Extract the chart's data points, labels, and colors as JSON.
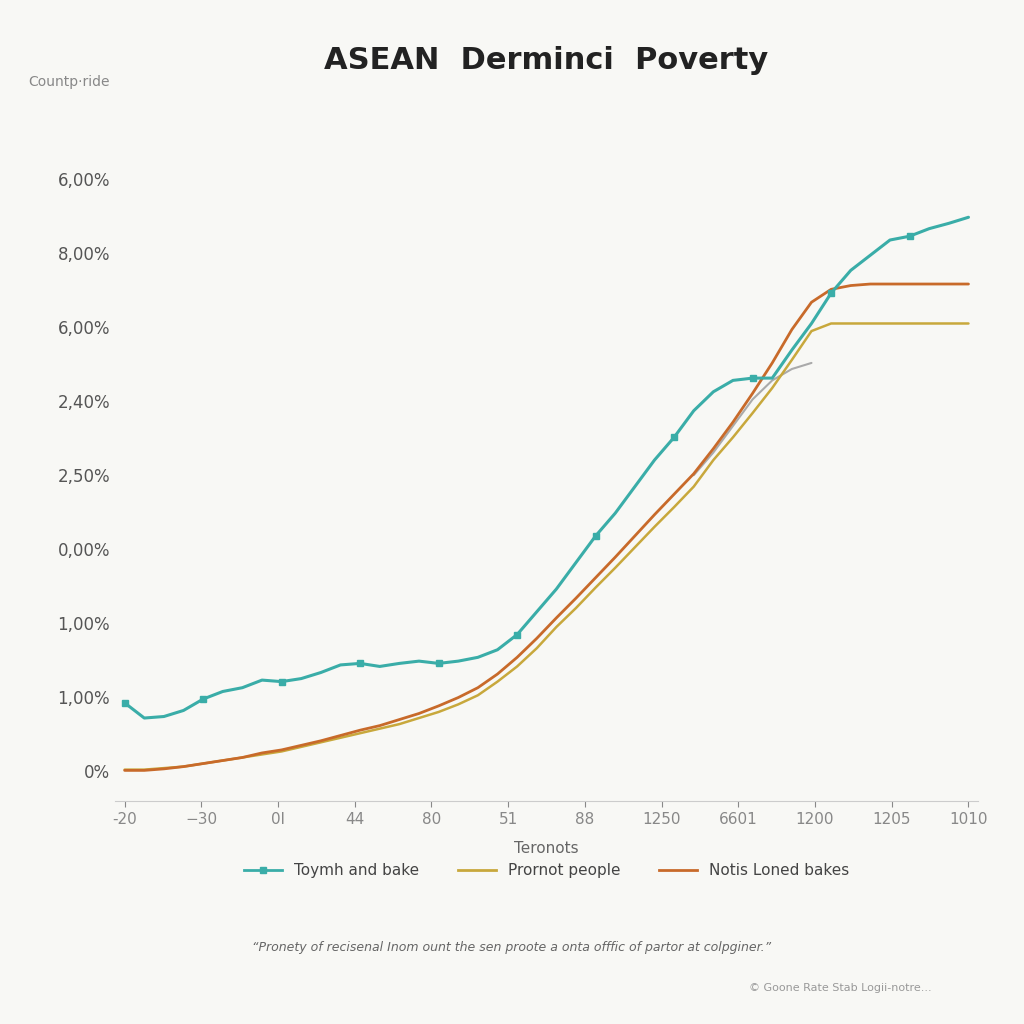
{
  "title": "ASEAN  Derminci  Poverty",
  "ylabel": "Countp·ride",
  "xlabel": "Teronots",
  "footnote": "“Pronety of recisenal Inom ount the sen proote a onta offfic of partor at colpginer.”",
  "copyright": "© Goone Rate Stab Logii-notre...",
  "x_labels": [
    "-20",
    "−30",
    "0l",
    "44",
    "80",
    "51",
    "88",
    "1250",
    "6601",
    "1200",
    "1205",
    "1010"
  ],
  "y_labels": [
    "0%",
    "1,00%",
    "1,00%",
    "0,00%",
    "2,50%",
    "2,40%",
    "6,00%",
    "8,00%",
    "6,00%"
  ],
  "background_color": "#f8f8f5",
  "plot_bg": "#f8f8f5",
  "series": [
    {
      "name": "Toymh and bake",
      "color": "#3aada8",
      "linewidth": 2.2,
      "y": [
        0.9,
        0.7,
        0.72,
        0.8,
        0.95,
        1.05,
        1.1,
        1.2,
        1.18,
        1.22,
        1.3,
        1.4,
        1.42,
        1.38,
        1.42,
        1.45,
        1.42,
        1.45,
        1.5,
        1.6,
        1.8,
        2.1,
        2.4,
        2.75,
        3.1,
        3.4,
        3.75,
        4.1,
        4.4,
        4.75,
        5.0,
        5.15,
        5.18,
        5.18,
        5.55,
        5.9,
        6.3,
        6.6,
        6.8,
        7.0,
        7.05,
        7.15,
        7.22,
        7.3
      ]
    },
    {
      "name": "Prornot people",
      "color": "#c8a83c",
      "linewidth": 1.8,
      "y": [
        0.02,
        0.02,
        0.04,
        0.06,
        0.1,
        0.14,
        0.18,
        0.22,
        0.26,
        0.32,
        0.38,
        0.44,
        0.5,
        0.56,
        0.62,
        0.7,
        0.78,
        0.88,
        1.0,
        1.18,
        1.38,
        1.62,
        1.9,
        2.15,
        2.42,
        2.68,
        2.95,
        3.22,
        3.48,
        3.75,
        4.1,
        4.4,
        4.72,
        5.05,
        5.42,
        5.8,
        5.9,
        5.9,
        5.9,
        5.9,
        5.9,
        5.9,
        5.9,
        5.9
      ]
    },
    {
      "name": "Notis Loned bakes",
      "color": "#c86a2a",
      "linewidth": 2.0,
      "y": [
        0.01,
        0.01,
        0.03,
        0.06,
        0.1,
        0.14,
        0.18,
        0.24,
        0.28,
        0.34,
        0.4,
        0.47,
        0.54,
        0.6,
        0.68,
        0.76,
        0.86,
        0.97,
        1.1,
        1.28,
        1.5,
        1.75,
        2.02,
        2.28,
        2.55,
        2.82,
        3.1,
        3.38,
        3.65,
        3.92,
        4.25,
        4.6,
        4.98,
        5.38,
        5.82,
        6.18,
        6.35,
        6.4,
        6.42,
        6.42,
        6.42,
        6.42,
        6.42,
        6.42
      ]
    },
    {
      "name": "gray_line",
      "color": "#aaaaaa",
      "linewidth": 1.5,
      "y": [
        null,
        null,
        null,
        null,
        null,
        null,
        null,
        null,
        null,
        null,
        null,
        null,
        null,
        null,
        null,
        null,
        null,
        null,
        null,
        null,
        null,
        null,
        null,
        null,
        null,
        null,
        null,
        null,
        null,
        3.9,
        4.2,
        4.55,
        4.9,
        5.15,
        5.3,
        5.38,
        null,
        null,
        null,
        null,
        null,
        null,
        null,
        null
      ]
    }
  ],
  "num_points": 44,
  "xlim": [
    -0.5,
    43.5
  ],
  "ylim": [
    -0.4,
    8.8
  ],
  "title_fontsize": 22,
  "tick_label_color": "#888888",
  "ytick_label_color": "#555555",
  "legend_fontsize": 11,
  "label_fontsize": 10
}
